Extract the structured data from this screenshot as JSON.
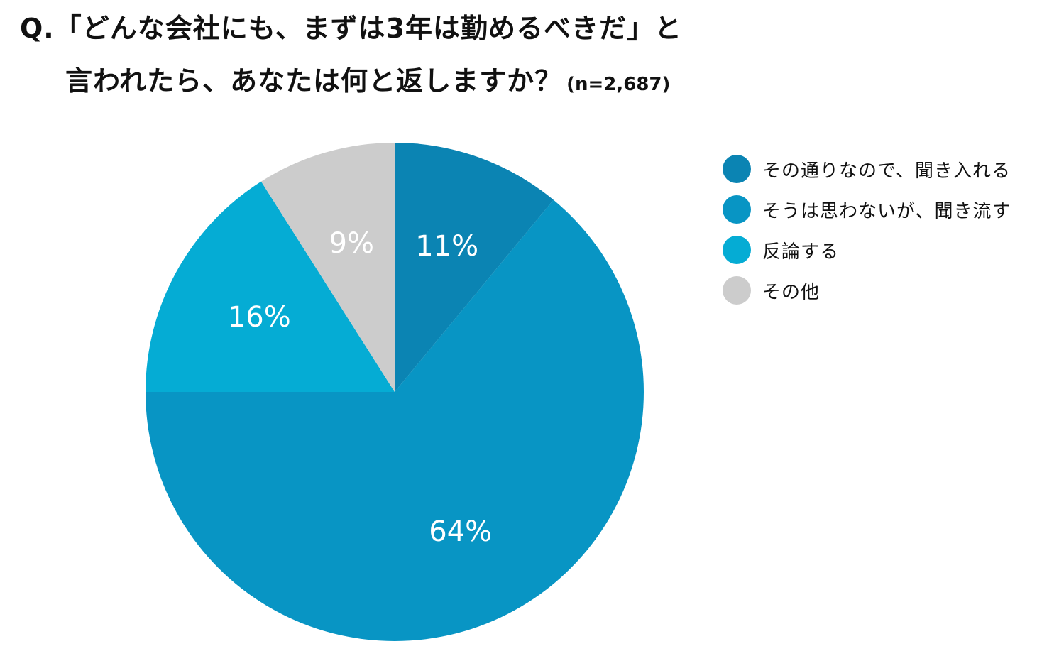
{
  "question": {
    "line1": "Q.「どんな会社にも、まずは3年は勤めるべきだ」と",
    "line2": "言われたら、あなたは何と返しますか？",
    "sample_size": "(n=2,687)"
  },
  "chart_data": {
    "type": "pie",
    "title": "",
    "slices": [
      {
        "label": "その通りなので、聞き入れる",
        "value": 11,
        "display": "11%",
        "color": "#0b84b3"
      },
      {
        "label": "そうは思わないが、聞き流す",
        "value": 64,
        "display": "64%",
        "color": "#0895c4"
      },
      {
        "label": "反論する",
        "value": 16,
        "display": "16%",
        "color": "#05acd4"
      },
      {
        "label": "その他",
        "value": 9,
        "display": "9%",
        "color": "#cccccc"
      }
    ],
    "legend_position": "right"
  }
}
